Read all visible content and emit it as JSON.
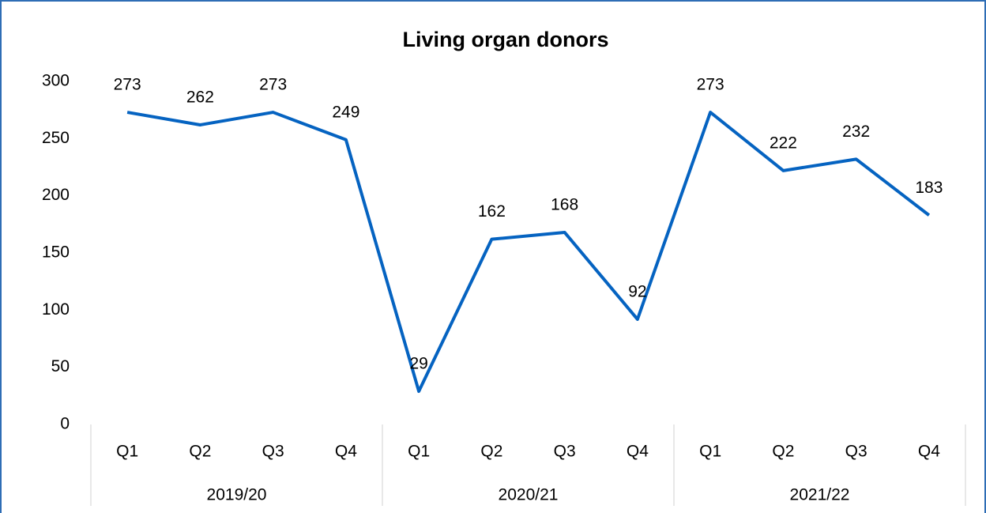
{
  "chart_data": {
    "type": "line",
    "title": "Living organ donors",
    "categories": [
      "Q1",
      "Q2",
      "Q3",
      "Q4",
      "Q1",
      "Q2",
      "Q3",
      "Q4",
      "Q1",
      "Q2",
      "Q3",
      "Q4"
    ],
    "category_groups": [
      "2019/20",
      "2020/21",
      "2021/22"
    ],
    "values": [
      273,
      262,
      273,
      249,
      29,
      162,
      168,
      92,
      273,
      222,
      232,
      183
    ],
    "color": "#0563c1",
    "ylim": [
      0,
      300
    ],
    "yticks": [
      0,
      50,
      100,
      150,
      200,
      250,
      300
    ],
    "grid": false
  }
}
